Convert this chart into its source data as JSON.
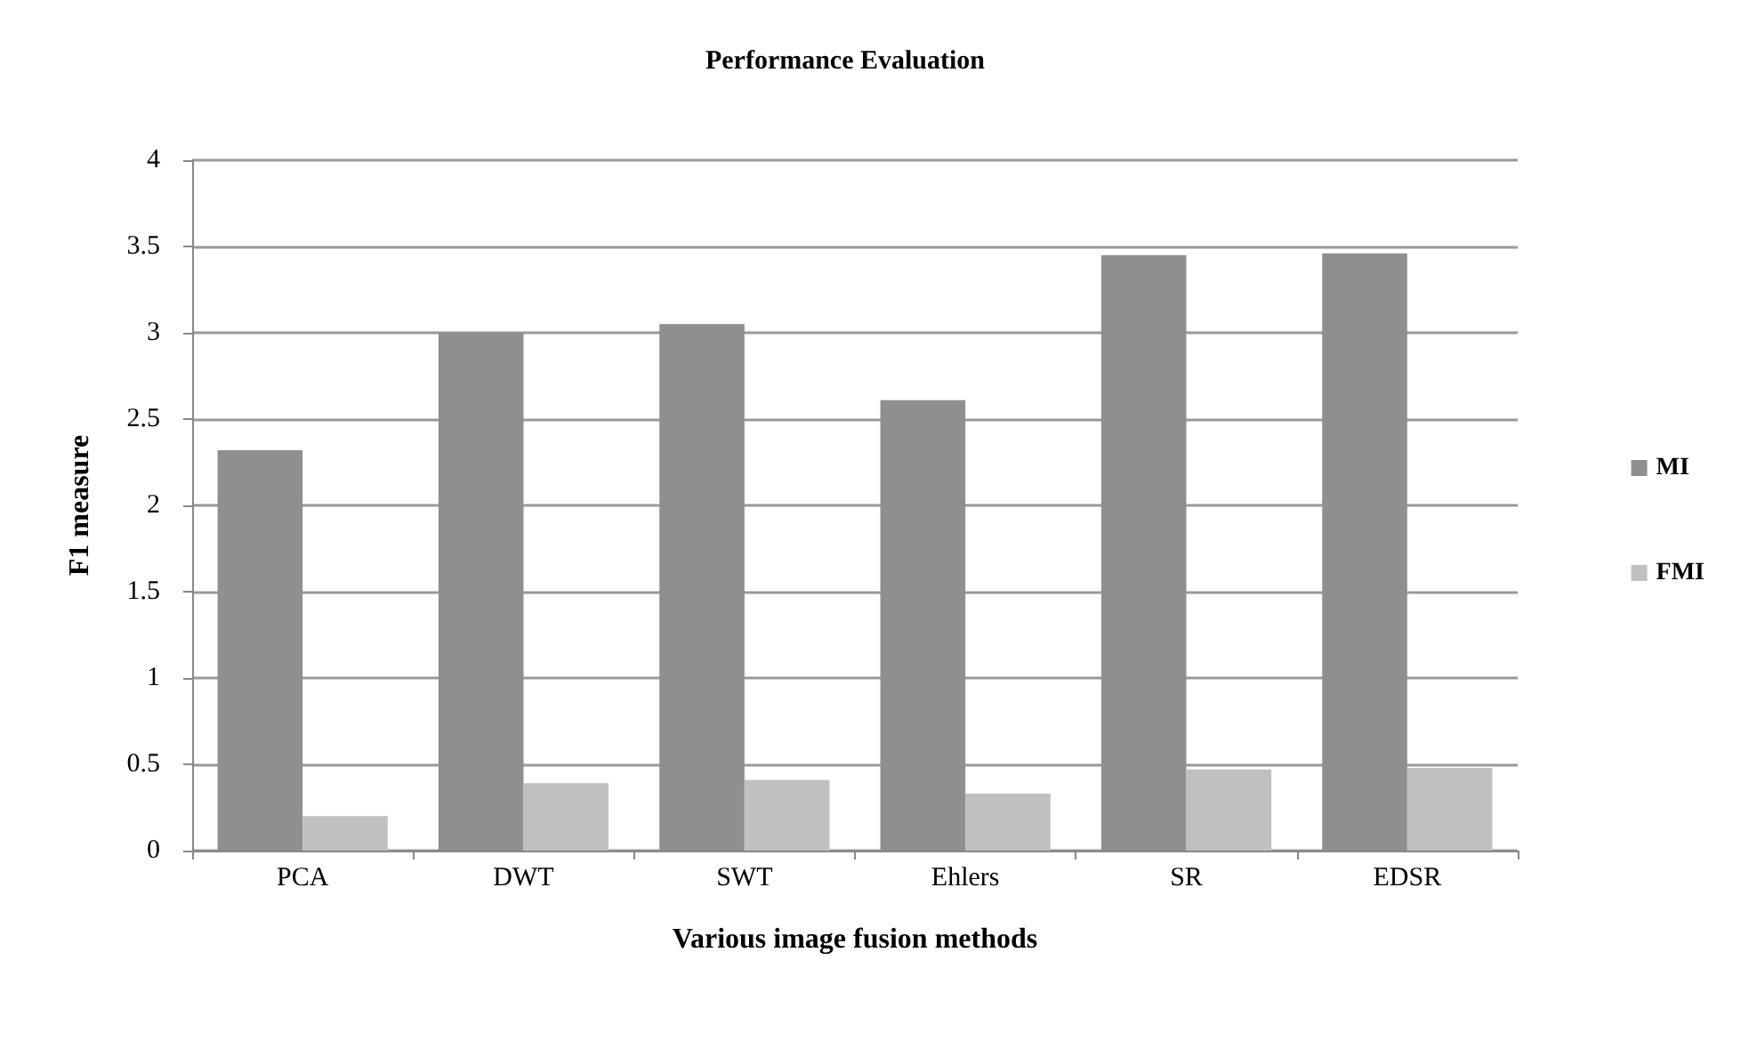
{
  "chart_data": {
    "type": "bar",
    "title": "Performance Evaluation",
    "xlabel": "Various image fusion methods",
    "ylabel": "F1 measure",
    "categories": [
      "PCA",
      "DWT",
      "SWT",
      "Ehlers",
      "SR",
      "EDSR"
    ],
    "series": [
      {
        "name": "MI",
        "color": "#8f8f8f",
        "values": [
          2.32,
          3.0,
          3.05,
          2.61,
          3.45,
          3.46
        ]
      },
      {
        "name": "FMI",
        "color": "#c0c0c0",
        "values": [
          0.2,
          0.39,
          0.41,
          0.33,
          0.47,
          0.48
        ]
      }
    ],
    "ylim": [
      0,
      4
    ],
    "yticks": [
      0,
      0.5,
      1,
      1.5,
      2,
      2.5,
      3,
      3.5,
      4
    ],
    "grid": "y",
    "legend": "right"
  }
}
